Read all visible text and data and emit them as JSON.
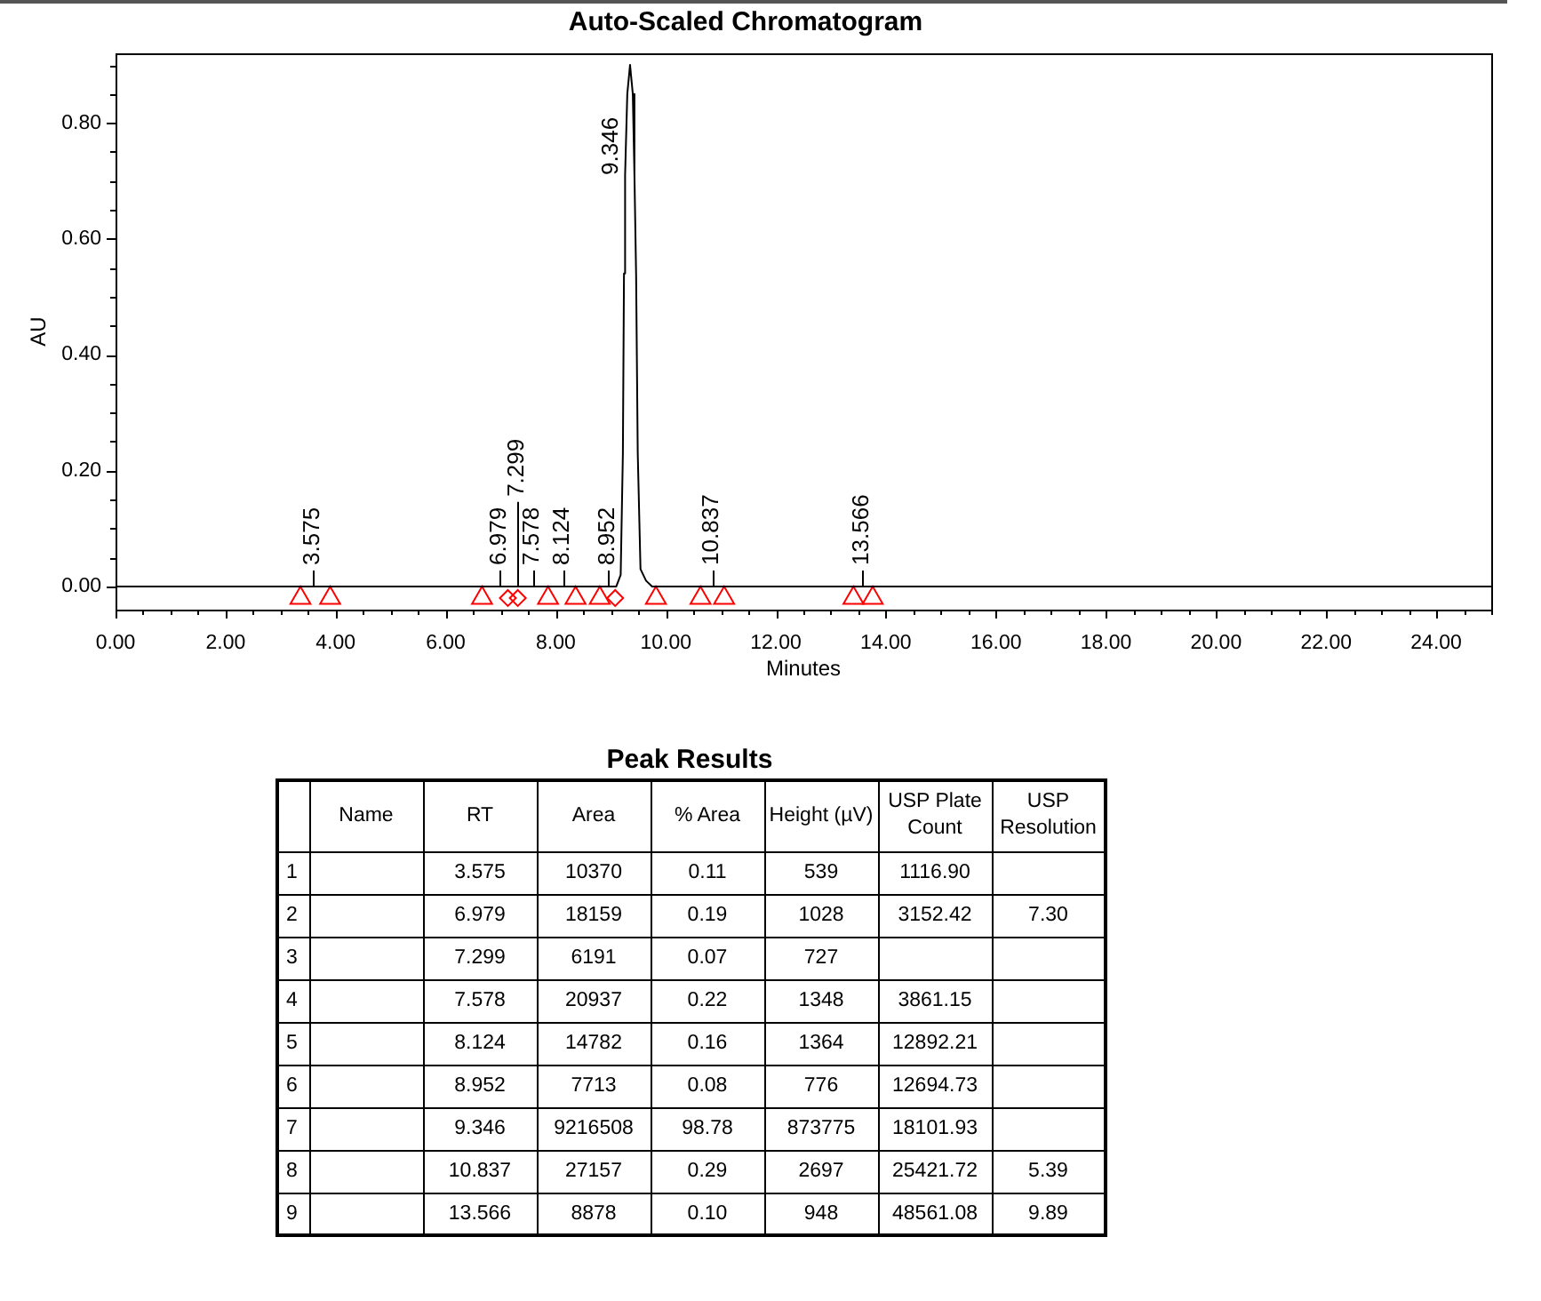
{
  "chart_data": [
    {
      "type": "line",
      "title": "Auto-Scaled Chromatogram",
      "xlabel": "Minutes",
      "ylabel": "AU",
      "xlim": [
        0,
        25
      ],
      "ylim": [
        -0.04,
        0.92
      ],
      "xticks": [
        {
          "value": 0,
          "label": "0.00"
        },
        {
          "value": 0.5,
          "label": null
        },
        {
          "value": 1,
          "label": null
        },
        {
          "value": 1.5,
          "label": null
        },
        {
          "value": 2,
          "label": "2.00"
        },
        {
          "value": 2.5,
          "label": null
        },
        {
          "value": 3,
          "label": null
        },
        {
          "value": 3.5,
          "label": null
        },
        {
          "value": 4,
          "label": "4.00"
        },
        {
          "value": 4.5,
          "label": null
        },
        {
          "value": 5,
          "label": null
        },
        {
          "value": 5.5,
          "label": null
        },
        {
          "value": 6,
          "label": "6.00"
        },
        {
          "value": 6.5,
          "label": null
        },
        {
          "value": 7,
          "label": null
        },
        {
          "value": 7.5,
          "label": null
        },
        {
          "value": 8,
          "label": "8.00"
        },
        {
          "value": 8.5,
          "label": null
        },
        {
          "value": 9,
          "label": null
        },
        {
          "value": 9.5,
          "label": null
        },
        {
          "value": 10,
          "label": "10.00"
        },
        {
          "value": 10.5,
          "label": null
        },
        {
          "value": 11,
          "label": null
        },
        {
          "value": 11.5,
          "label": null
        },
        {
          "value": 12,
          "label": "12.00"
        },
        {
          "value": 12.5,
          "label": null
        },
        {
          "value": 13,
          "label": null
        },
        {
          "value": 13.5,
          "label": null
        },
        {
          "value": 14,
          "label": "14.00"
        },
        {
          "value": 14.5,
          "label": null
        },
        {
          "value": 15,
          "label": null
        },
        {
          "value": 15.5,
          "label": null
        },
        {
          "value": 16,
          "label": "16.00"
        },
        {
          "value": 16.5,
          "label": null
        },
        {
          "value": 17,
          "label": null
        },
        {
          "value": 17.5,
          "label": null
        },
        {
          "value": 18,
          "label": "18.00"
        },
        {
          "value": 18.5,
          "label": null
        },
        {
          "value": 19,
          "label": null
        },
        {
          "value": 19.5,
          "label": null
        },
        {
          "value": 20,
          "label": "20.00"
        },
        {
          "value": 20.5,
          "label": null
        },
        {
          "value": 21,
          "label": null
        },
        {
          "value": 21.5,
          "label": null
        },
        {
          "value": 22,
          "label": "22.00"
        },
        {
          "value": 22.5,
          "label": null
        },
        {
          "value": 23,
          "label": null
        },
        {
          "value": 23.5,
          "label": null
        },
        {
          "value": 24,
          "label": "24.00"
        },
        {
          "value": 24.5,
          "label": null
        },
        {
          "value": 25,
          "label": null
        }
      ],
      "yticks": [
        {
          "value": 0,
          "label": "0.00"
        },
        {
          "value": 0.05,
          "label": null
        },
        {
          "value": 0.1,
          "label": null
        },
        {
          "value": 0.15,
          "label": null
        },
        {
          "value": 0.2,
          "label": "0.20"
        },
        {
          "value": 0.25,
          "label": null
        },
        {
          "value": 0.3,
          "label": null
        },
        {
          "value": 0.35,
          "label": null
        },
        {
          "value": 0.4,
          "label": "0.40"
        },
        {
          "value": 0.45,
          "label": null
        },
        {
          "value": 0.5,
          "label": null
        },
        {
          "value": 0.55,
          "label": null
        },
        {
          "value": 0.6,
          "label": "0.60"
        },
        {
          "value": 0.65,
          "label": null
        },
        {
          "value": 0.7,
          "label": null
        },
        {
          "value": 0.75,
          "label": null
        },
        {
          "value": 0.8,
          "label": "0.80"
        },
        {
          "value": 0.85,
          "label": null
        },
        {
          "value": 0.9,
          "label": null
        }
      ],
      "series": [
        {
          "type": "line",
          "color": "#000000",
          "x": [
            0,
            9.1,
            9.18,
            9.22,
            9.24,
            9.26,
            9.3,
            9.35,
            9.4,
            9.43,
            9.46,
            9.49,
            9.54,
            9.64,
            9.75,
            25
          ],
          "values": [
            0,
            0,
            0.02,
            0.23,
            0.54,
            0.71,
            0.85,
            0.9,
            0.85,
            0.71,
            0.54,
            0.23,
            0.03,
            0.01,
            0,
            0
          ]
        },
        {
          "type": "scatter",
          "color": "#ff0000",
          "marker": "triangle",
          "x": [
            3.36,
            3.9,
            6.66,
            7.86,
            8.36,
            8.8,
            9.82,
            10.63,
            11.06,
            13.41,
            13.76
          ],
          "values": [
            -0.02,
            -0.02,
            -0.02,
            -0.02,
            -0.02,
            -0.02,
            -0.02,
            -0.02,
            -0.02,
            -0.02,
            -0.02
          ]
        },
        {
          "type": "scatter",
          "color": "#ff0000",
          "marker": "diamond",
          "x": [
            7.13,
            7.31,
            9.08
          ],
          "values": [
            -0.02,
            -0.02,
            -0.02
          ]
        }
      ],
      "annotations": [
        {
          "text": "3.575",
          "x": 3.575,
          "y": 0
        },
        {
          "text": "6.979",
          "x": 6.979,
          "y": 0
        },
        {
          "text": "7.299",
          "x": 7.299,
          "y": 0
        },
        {
          "text": "7.578",
          "x": 7.578,
          "y": 0
        },
        {
          "text": "8.124",
          "x": 8.124,
          "y": 0
        },
        {
          "text": "8.952",
          "x": 8.952,
          "y": 0
        },
        {
          "text": "9.346",
          "x": 9.346,
          "y": 0.71
        },
        {
          "text": "10.837",
          "x": 10.837,
          "y": 0
        },
        {
          "text": "13.566",
          "x": 13.566,
          "y": 0
        }
      ]
    },
    {
      "type": "heatmap",
      "title": "Peak Results",
      "categories": [
        "Name",
        "RT",
        "Area",
        "% Area",
        "Height (µV)",
        "USP Plate Count",
        "USP Resolution"
      ],
      "y_categories": [
        "1",
        "2",
        "3",
        "4",
        "5",
        "6",
        "7",
        "8",
        "9"
      ],
      "cells": [
        [
          null,
          3.575,
          10370,
          0.11,
          539,
          1116.9,
          null
        ],
        [
          null,
          6.979,
          18159,
          0.19,
          1028,
          3152.42,
          7.3
        ],
        [
          null,
          7.299,
          6191,
          0.07,
          727,
          null,
          null
        ],
        [
          null,
          7.578,
          20937,
          0.22,
          1348,
          3861.15,
          null
        ],
        [
          null,
          8.124,
          14782,
          0.16,
          1364,
          12892.21,
          null
        ],
        [
          null,
          8.952,
          7713,
          0.08,
          776,
          12694.73,
          null
        ],
        [
          null,
          9.346,
          9216508,
          98.78,
          873775,
          18101.93,
          null
        ],
        [
          null,
          10.837,
          27157,
          0.29,
          2697,
          25421.72,
          5.39
        ],
        [
          null,
          13.566,
          8878,
          0.1,
          948,
          48561.08,
          9.89
        ]
      ],
      "cell_labels": [
        [
          null,
          "3.575",
          "10370",
          "0.11",
          "539",
          "1116.90",
          null
        ],
        [
          null,
          "6.979",
          "18159",
          "0.19",
          "1028",
          "3152.42",
          "7.30"
        ],
        [
          null,
          "7.299",
          "6191",
          "0.07",
          "727",
          null,
          null
        ],
        [
          null,
          "7.578",
          "20937",
          "0.22",
          "1348",
          "3861.15",
          null
        ],
        [
          null,
          "8.124",
          "14782",
          "0.16",
          "1364",
          "12892.21",
          null
        ],
        [
          null,
          "8.952",
          "7713",
          "0.08",
          "776",
          "12694.73",
          null
        ],
        [
          null,
          "9.346",
          "9216508",
          "98.78",
          "873775",
          "18101.93",
          null
        ],
        [
          null,
          "10.837",
          "27157",
          "0.29",
          "2697",
          "25421.72",
          "5.39"
        ],
        [
          null,
          "13.566",
          "8878",
          "0.10",
          "948",
          "48561.08",
          "9.89"
        ]
      ]
    }
  ]
}
